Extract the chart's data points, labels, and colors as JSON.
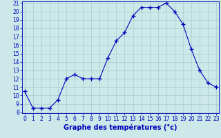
{
  "hours": [
    0,
    1,
    2,
    3,
    4,
    5,
    6,
    7,
    8,
    9,
    10,
    11,
    12,
    13,
    14,
    15,
    16,
    17,
    18,
    19,
    20,
    21,
    22,
    23
  ],
  "temperatures": [
    10.5,
    8.5,
    8.5,
    8.5,
    9.5,
    12.0,
    12.5,
    12.0,
    12.0,
    12.0,
    14.5,
    16.5,
    17.5,
    19.5,
    20.5,
    20.5,
    20.5,
    21.0,
    20.0,
    18.5,
    15.5,
    13.0,
    11.5,
    11.0
  ],
  "line_color": "#0000bb",
  "marker": "+",
  "marker_size": 4,
  "bg_color": "#cce8e8",
  "grid_color": "#aacccc",
  "title": "Graphe des températures (°c)",
  "title_color": "#0000bb",
  "title_fontsize": 7,
  "tick_color": "#0000bb",
  "ylim": [
    8,
    21
  ],
  "xlim": [
    0,
    23
  ],
  "yticks": [
    8,
    9,
    10,
    11,
    12,
    13,
    14,
    15,
    16,
    17,
    18,
    19,
    20,
    21
  ],
  "xticks": [
    0,
    1,
    2,
    3,
    4,
    5,
    6,
    7,
    8,
    9,
    10,
    11,
    12,
    13,
    14,
    15,
    16,
    17,
    18,
    19,
    20,
    21,
    22,
    23
  ]
}
